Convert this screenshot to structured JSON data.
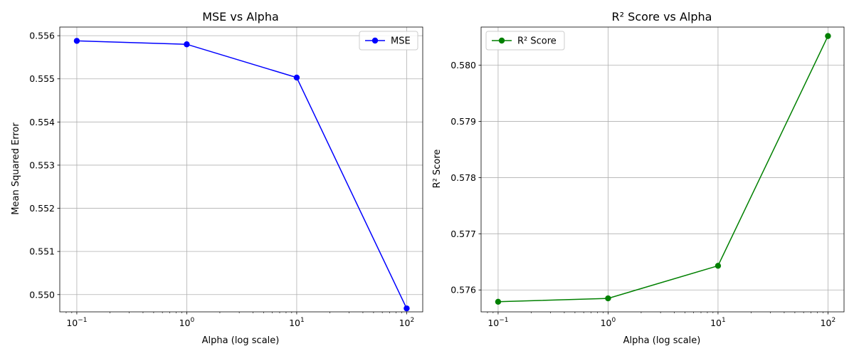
{
  "chart_data": [
    {
      "type": "line",
      "title": "MSE vs Alpha",
      "xlabel": "Alpha (log scale)",
      "ylabel": "Mean Squared Error",
      "xscale": "log",
      "xlim": [
        0.07,
        140
      ],
      "ylim": [
        0.5496,
        0.5562
      ],
      "xticks": [
        {
          "base": "10",
          "exp": "−1",
          "value": 0.1
        },
        {
          "base": "10",
          "exp": "0",
          "value": 1
        },
        {
          "base": "10",
          "exp": "1",
          "value": 10
        },
        {
          "base": "10",
          "exp": "2",
          "value": 100
        }
      ],
      "yticks": [
        "0.550",
        "0.551",
        "0.552",
        "0.553",
        "0.554",
        "0.555",
        "0.556"
      ],
      "ytick_values": [
        0.55,
        0.551,
        0.552,
        0.553,
        0.554,
        0.555,
        0.556
      ],
      "grid": true,
      "legend_position": "upper right",
      "series": [
        {
          "name": "MSE",
          "color": "#0000ff",
          "marker": "circle",
          "x": [
            0.1,
            1,
            10,
            100
          ],
          "y": [
            0.55588,
            0.5558,
            0.55503,
            0.54968
          ]
        }
      ]
    },
    {
      "type": "line",
      "title": "R² Score vs Alpha",
      "xlabel": "Alpha (log scale)",
      "ylabel": "R² Score",
      "xscale": "log",
      "xlim": [
        0.07,
        140
      ],
      "ylim": [
        0.57561,
        0.58068
      ],
      "xticks": [
        {
          "base": "10",
          "exp": "−1",
          "value": 0.1
        },
        {
          "base": "10",
          "exp": "0",
          "value": 1
        },
        {
          "base": "10",
          "exp": "1",
          "value": 10
        },
        {
          "base": "10",
          "exp": "2",
          "value": 100
        }
      ],
      "yticks": [
        "0.576",
        "0.577",
        "0.578",
        "0.579",
        "0.580"
      ],
      "ytick_values": [
        0.576,
        0.577,
        0.578,
        0.579,
        0.58
      ],
      "grid": true,
      "legend_position": "upper left",
      "series": [
        {
          "name": "R² Score",
          "color": "#008000",
          "marker": "circle",
          "x": [
            0.1,
            1,
            10,
            100
          ],
          "y": [
            0.57579,
            0.57585,
            0.57643,
            0.58052
          ]
        }
      ]
    }
  ]
}
